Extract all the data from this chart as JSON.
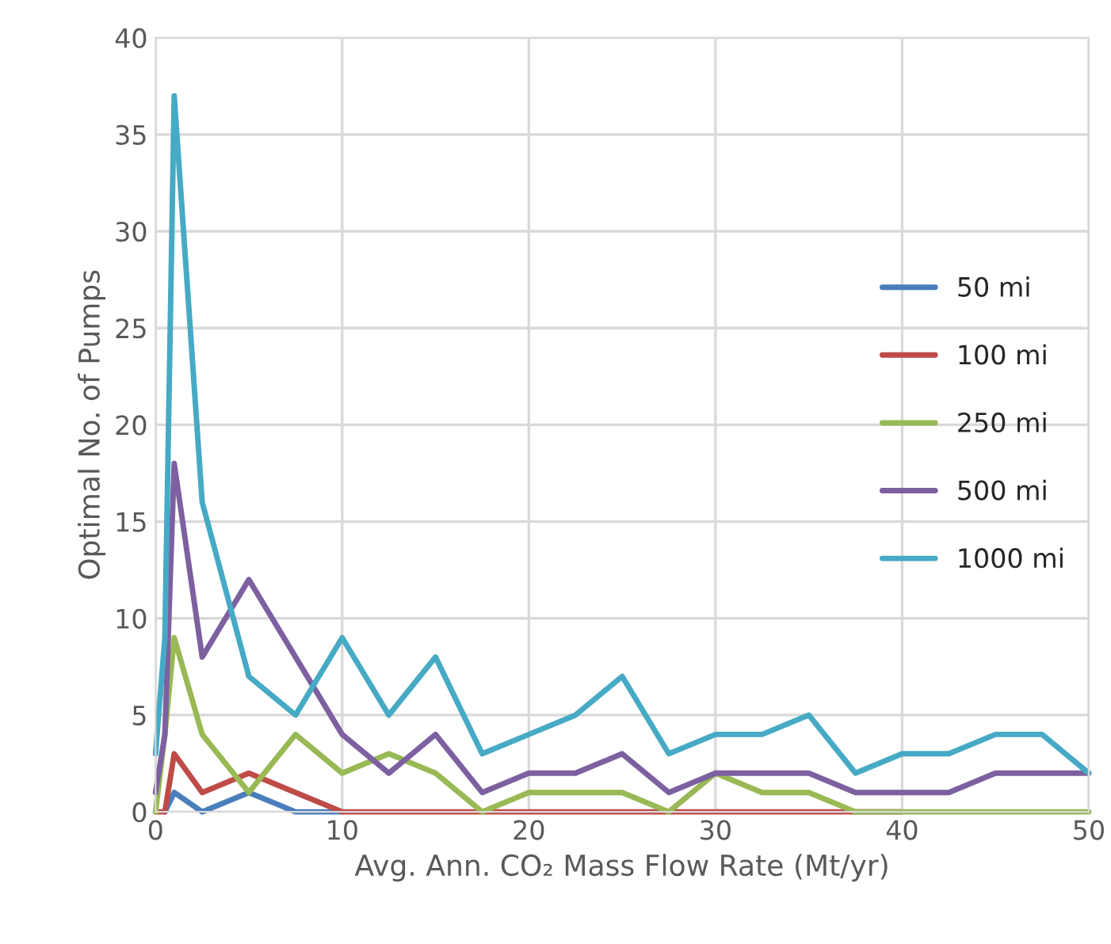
{
  "chart_data": {
    "type": "line",
    "xlabel": "Avg. Ann. CO₂ Mass Flow Rate (Mt/yr)",
    "ylabel": "Optimal No. of Pumps",
    "x": [
      0,
      0.5,
      1,
      2.5,
      5,
      7.5,
      10,
      12.5,
      15,
      17.5,
      20,
      22.5,
      25,
      27.5,
      30,
      32.5,
      35,
      37.5,
      40,
      42.5,
      45,
      47.5,
      50
    ],
    "series": [
      {
        "name": "50 mi",
        "color": "#4a7ebb",
        "values": [
          null,
          0,
          1,
          0,
          1,
          0,
          0,
          null,
          null,
          null,
          null,
          null,
          null,
          null,
          null,
          null,
          null,
          null,
          null,
          null,
          null,
          null,
          null
        ]
      },
      {
        "name": "100 mi",
        "color": "#be4b48",
        "values": [
          0,
          0,
          3,
          1,
          2,
          1,
          0,
          0,
          0,
          0,
          0,
          0,
          0,
          0,
          0,
          0,
          0,
          0,
          0,
          null,
          null,
          null,
          null
        ]
      },
      {
        "name": "250 mi",
        "color": "#98b954",
        "values": [
          0,
          4,
          9,
          4,
          1,
          4,
          2,
          3,
          2,
          0,
          1,
          1,
          1,
          0,
          2,
          1,
          1,
          0,
          0,
          0,
          0,
          0,
          0
        ]
      },
      {
        "name": "500 mi",
        "color": "#7d60a0",
        "values": [
          1,
          4,
          18,
          8,
          12,
          8,
          4,
          2,
          4,
          1,
          2,
          2,
          3,
          1,
          2,
          2,
          2,
          1,
          1,
          1,
          2,
          2,
          2
        ]
      },
      {
        "name": "1000 mi",
        "color": "#46aac5",
        "values": [
          3,
          9,
          37,
          16,
          7,
          5,
          9,
          5,
          8,
          3,
          4,
          5,
          7,
          3,
          4,
          4,
          5,
          2,
          3,
          3,
          4,
          4,
          2
        ]
      }
    ],
    "xlim": [
      0,
      50
    ],
    "xticks": [
      0,
      10,
      20,
      30,
      40,
      50
    ],
    "ylim": [
      0,
      40
    ],
    "yticks": [
      0,
      5,
      10,
      15,
      20,
      25,
      30,
      35,
      40
    ],
    "grid": true,
    "legend": "right",
    "marker": "none",
    "line_style": "solid"
  }
}
